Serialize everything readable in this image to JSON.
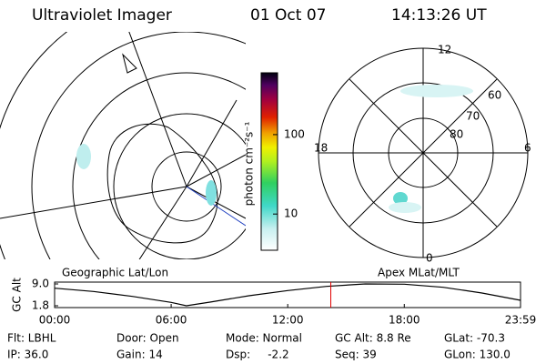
{
  "header": {
    "title": "Ultraviolet Imager",
    "date": "01 Oct 07",
    "time": "14:13:26 UT"
  },
  "maps": {
    "left_label": "Geographic Lat/Lon",
    "right_label": "Apex MLat/MLT",
    "mlt_labels": [
      "12",
      "18",
      "6",
      "0"
    ],
    "mlat_labels": [
      "60",
      "70",
      "80"
    ]
  },
  "colorbar": {
    "label": "photon cm⁻²s⁻¹",
    "log_scale": true,
    "lim": [
      3.5,
      600
    ],
    "ticks": [
      10,
      100
    ]
  },
  "chart_data": {
    "type": "line",
    "y_label": "GC Alt",
    "x": [
      0,
      120,
      240,
      360,
      407,
      480,
      600,
      720,
      840,
      960,
      1080,
      1200,
      1320,
      1439
    ],
    "series": [
      {
        "name": "GC Alt",
        "color": "#000000",
        "values": [
          7.6,
          6.5,
          4.9,
          2.9,
          1.8,
          3.0,
          5.1,
          6.8,
          8.2,
          9.0,
          8.9,
          7.9,
          6.0,
          3.6
        ]
      }
    ],
    "xlim": [
      0,
      1439
    ],
    "ylim": [
      1.2,
      9.6
    ],
    "xticks": [
      {
        "value": 0,
        "label": "00:00"
      },
      {
        "value": 360,
        "label": "06:00"
      },
      {
        "value": 720,
        "label": "12:00"
      },
      {
        "value": 1080,
        "label": "18:00"
      },
      {
        "value": 1439,
        "label": "23:59"
      }
    ],
    "yticks": [
      {
        "value": 9.0,
        "label": "9.0"
      },
      {
        "value": 1.8,
        "label": "1.8"
      }
    ],
    "current_time": 853,
    "current_color": "#e00000"
  },
  "info": {
    "rows": [
      [
        "Flt: LBHL",
        "Door: Open",
        "Mode: Normal",
        "GC Alt: 8.8 Re",
        "GLat: -70.3"
      ],
      [
        "IP: 36.0",
        "Gain: 14",
        "Dsp:     -2.2",
        "Seq: 39",
        "GLon: 130.0"
      ]
    ]
  }
}
